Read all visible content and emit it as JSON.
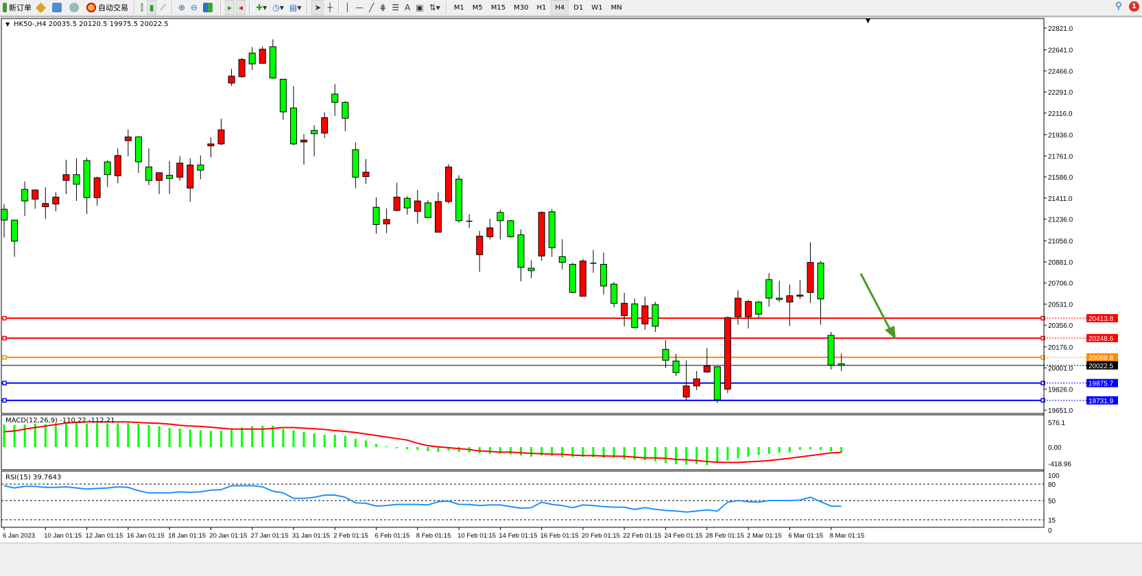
{
  "toolbar": {
    "new_order": "新订单",
    "auto_trading": "自动交易",
    "timeframes": [
      "M1",
      "M5",
      "M15",
      "M30",
      "H1",
      "H4",
      "D1",
      "W1",
      "MN"
    ],
    "active_timeframe": "H4",
    "notification_count": "1",
    "tools": [
      "history-center-icon",
      "profile-icon",
      "signal-icon",
      "bar-chart-icon",
      "candlestick-icon",
      "line-chart-icon",
      "zoom-in-icon",
      "zoom-out-icon",
      "tile-windows-icon",
      "chart-shift-icon",
      "autoscroll-icon",
      "new-indicator-icon",
      "period-clock-icon",
      "template-icon",
      "cursor-icon",
      "crosshair-icon",
      "vertical-line-icon",
      "horizontal-line-icon",
      "trendline-icon",
      "fibonacci-icon",
      "fibo-fan-icon",
      "text-icon",
      "text-label-icon",
      "arrows-icon"
    ]
  },
  "chart": {
    "header": "HK50-,H4  20035.5 20120.5 19975.5 20022.5",
    "macd_label": "MACD(12,26,9) -110.22 -112.21",
    "rsi_label": "RSI(15) 39.7643"
  },
  "chart_data": {
    "type": "candlestick",
    "symbol": "HK50-",
    "timeframe": "H4",
    "up_color": "#ff0000",
    "down_color": "#00ff00",
    "price_ticks": [
      "22821.0",
      "22641.0",
      "22466.0",
      "22291.0",
      "22116.0",
      "21936.0",
      "21761.0",
      "21586.0",
      "21411.0",
      "21236.0",
      "21056.0",
      "20881.0",
      "20706.0",
      "20531.0",
      "20356.0",
      "20176.0",
      "20001.0",
      "19826.0",
      "19651.0"
    ],
    "ylim": [
      19651,
      22821
    ],
    "date_labels": [
      "6 Jan 2023",
      "10 Jan 01:15",
      "12 Jan 01:15",
      "16 Jan 01:15",
      "18 Jan 01:15",
      "20 Jan 01:15",
      "27 Jan 01:15",
      "31 Jan 01:15",
      "2 Feb 01:15",
      "6 Feb 01:15",
      "8 Feb 01:15",
      "10 Feb 01:15",
      "14 Feb 01:15",
      "16 Feb 01:15",
      "20 Feb 01:15",
      "22 Feb 01:15",
      "24 Feb 01:15",
      "28 Feb 01:15",
      "2 Mar 01:15",
      "6 Mar 01:15",
      "8 Mar 01:15"
    ],
    "ohlc": [
      [
        21318,
        21362,
        21083,
        21228
      ],
      [
        21228,
        21228,
        20923,
        21053
      ],
      [
        21483,
        21548,
        21263,
        21387
      ],
      [
        21402,
        21483,
        21322,
        21478
      ],
      [
        21339,
        21501,
        21237,
        21366
      ],
      [
        21361,
        21458,
        21301,
        21419
      ],
      [
        21557,
        21729,
        21444,
        21605
      ],
      [
        21605,
        21740,
        21387,
        21525
      ],
      [
        21722,
        21745,
        21279,
        21414
      ],
      [
        21414,
        21589,
        21348,
        21579
      ],
      [
        21711,
        21722,
        21502,
        21605
      ],
      [
        21596,
        21823,
        21534,
        21764
      ],
      [
        21887,
        21979,
        21757,
        21918
      ],
      [
        21918,
        21924,
        21619,
        21711
      ],
      [
        21669,
        21823,
        21518,
        21557
      ],
      [
        21557,
        21626,
        21444,
        21621
      ],
      [
        21600,
        21717,
        21444,
        21573
      ],
      [
        21584,
        21759,
        21555,
        21701
      ],
      [
        21494,
        21740,
        21380,
        21685
      ],
      [
        21685,
        21764,
        21566,
        21642
      ],
      [
        21844,
        21915,
        21747,
        21860
      ],
      [
        21860,
        22069,
        21848,
        21977
      ],
      [
        22365,
        22483,
        22342,
        22423
      ],
      [
        22418,
        22574,
        22409,
        22561
      ],
      [
        22614,
        22664,
        22474,
        22524
      ],
      [
        22529,
        22669,
        22529,
        22646
      ],
      [
        22667,
        22728,
        22400,
        22407
      ],
      [
        22397,
        22397,
        22060,
        22126
      ],
      [
        22158,
        22340,
        21848,
        21860
      ],
      [
        21876,
        21942,
        21688,
        21892
      ],
      [
        21972,
        22016,
        21757,
        21945
      ],
      [
        21950,
        22122,
        21911,
        22078
      ],
      [
        22274,
        22356,
        22092,
        22205
      ],
      [
        22205,
        22216,
        21965,
        22073
      ],
      [
        21812,
        21872,
        21492,
        21584
      ],
      [
        21589,
        21734,
        21529,
        21626
      ],
      [
        21334,
        21416,
        21115,
        21191
      ],
      [
        21196,
        21325,
        21120,
        21233
      ],
      [
        21308,
        21538,
        21301,
        21419
      ],
      [
        21409,
        21426,
        21274,
        21329
      ],
      [
        21300,
        21479,
        21198,
        21387
      ],
      [
        21371,
        21394,
        21242,
        21249
      ],
      [
        21127,
        21458,
        21127,
        21382
      ],
      [
        21382,
        21692,
        21364,
        21669
      ],
      [
        21568,
        21601,
        21205,
        21223
      ],
      [
        21219,
        21277,
        21162,
        21219
      ],
      [
        20941,
        21139,
        20799,
        21095
      ],
      [
        21090,
        21240,
        21067,
        21164
      ],
      [
        21292,
        21315,
        21067,
        21223
      ],
      [
        21223,
        21228,
        21083,
        21090
      ],
      [
        21106,
        21150,
        20720,
        20835
      ],
      [
        20829,
        20895,
        20746,
        20808
      ],
      [
        20930,
        21302,
        20891,
        21292
      ],
      [
        21297,
        21320,
        20923,
        20999
      ],
      [
        20925,
        21070,
        20817,
        20877
      ],
      [
        20861,
        20874,
        20621,
        20628
      ],
      [
        20596,
        20906,
        20596,
        20888
      ],
      [
        20870,
        20980,
        20791,
        20870
      ],
      [
        20861,
        20959,
        20610,
        20681
      ],
      [
        20697,
        20714,
        20504,
        20537
      ],
      [
        20435,
        20625,
        20345,
        20538
      ],
      [
        20533,
        20577,
        20329,
        20336
      ],
      [
        20366,
        20593,
        20318,
        20517
      ],
      [
        20527,
        20550,
        20300,
        20347
      ],
      [
        20156,
        20232,
        20000,
        20065
      ],
      [
        20059,
        20118,
        19935,
        19963
      ],
      [
        19760,
        20064,
        19737,
        19852
      ],
      [
        19852,
        19976,
        19818,
        19910
      ],
      [
        19967,
        20167,
        19962,
        20017
      ],
      [
        20011,
        20011,
        19710,
        19737
      ],
      [
        19825,
        20427,
        19792,
        20419
      ],
      [
        20426,
        20645,
        20360,
        20580
      ],
      [
        20426,
        20566,
        20328,
        20553
      ],
      [
        20548,
        20555,
        20417,
        20447
      ],
      [
        20734,
        20789,
        20509,
        20580
      ],
      [
        20580,
        20725,
        20548,
        20569
      ],
      [
        20548,
        20693,
        20350,
        20601
      ],
      [
        20596,
        20730,
        20573,
        20606
      ],
      [
        20627,
        21044,
        20541,
        20877
      ],
      [
        20872,
        20888,
        20360,
        20574
      ],
      [
        20272,
        20300,
        19988,
        20025
      ],
      [
        20035.5,
        20120.5,
        19975.5,
        20022.5
      ]
    ],
    "levels": [
      {
        "price": "20413.8",
        "color": "#ff0000"
      },
      {
        "price": "20248.6",
        "color": "#ff0000"
      },
      {
        "price": "20088.8",
        "color": "#ff8c00"
      },
      {
        "price": "19875.7",
        "color": "#0000ff"
      },
      {
        "price": "19731.9",
        "color": "#0000ff"
      }
    ],
    "current_price": "20022.5",
    "annotation": {
      "type": "arrow",
      "color": "#4c9a2a",
      "direction": "down-right"
    },
    "macd": {
      "ticks": [
        "576.1",
        "0.00",
        "-418.96"
      ],
      "ylim": [
        -418.96,
        576.1
      ],
      "histogram_color": "#00ff00",
      "signal_color": "#ff0000",
      "histogram": [
        474,
        466,
        474,
        490,
        478,
        498,
        506,
        506,
        498,
        506,
        498,
        498,
        506,
        486,
        462,
        438,
        402,
        390,
        366,
        354,
        342,
        342,
        378,
        414,
        438,
        450,
        450,
        378,
        354,
        318,
        283,
        259,
        259,
        235,
        175,
        139,
        68,
        20,
        -24,
        -44,
        -60,
        -84,
        -100,
        -72,
        -100,
        -111,
        -131,
        -143,
        -139,
        -155,
        -179,
        -203,
        -179,
        -183,
        -215,
        -207,
        -203,
        -215,
        -227,
        -231,
        -259,
        -263,
        -275,
        -299,
        -334,
        -358,
        -370,
        -358,
        -378,
        -318,
        -279,
        -239,
        -203,
        -167,
        -143,
        -119,
        -111,
        -60,
        -48,
        -60,
        -84,
        -110.22
      ],
      "signal": [
        322,
        338,
        378,
        410,
        442,
        474,
        505,
        521,
        529,
        529,
        529,
        529,
        529,
        517,
        505,
        498,
        482,
        458,
        442,
        434,
        418,
        398,
        378,
        378,
        378,
        378,
        390,
        410,
        410,
        398,
        386,
        370,
        346,
        330,
        306,
        275,
        243,
        211,
        179,
        147,
        80,
        30,
        5,
        -12,
        -32,
        -52,
        -80,
        -92,
        -107,
        -107,
        -119,
        -131,
        -139,
        -151,
        -151,
        -167,
        -179,
        -179,
        -187,
        -191,
        -195,
        -211,
        -227,
        -227,
        -235,
        -259,
        -267,
        -283,
        -302,
        -318,
        -322,
        -322,
        -310,
        -299,
        -283,
        -259,
        -235,
        -207,
        -179,
        -151,
        -123,
        -112.21
      ]
    },
    "rsi": {
      "ticks": [
        "100",
        "80",
        "50",
        "15",
        "0"
      ],
      "levels": [
        80,
        50,
        15
      ],
      "color": "#1e90ff",
      "values": [
        77,
        73,
        76,
        76,
        74,
        74,
        75,
        73,
        71,
        72,
        73,
        75,
        74,
        68,
        64,
        64,
        64,
        66,
        65,
        66,
        69,
        70,
        77,
        77,
        77,
        75,
        67,
        64,
        54,
        54,
        56,
        60,
        60,
        56,
        46,
        45,
        40,
        41,
        43,
        43,
        43,
        42,
        48,
        49,
        43,
        43,
        41,
        42,
        42,
        39,
        36,
        37,
        47,
        43,
        41,
        37,
        42,
        41,
        39,
        38,
        38,
        34,
        37,
        34,
        32,
        31,
        29,
        31,
        33,
        31,
        47,
        50,
        48,
        47,
        50,
        50,
        50,
        51,
        56,
        48,
        40,
        39.76
      ]
    }
  }
}
